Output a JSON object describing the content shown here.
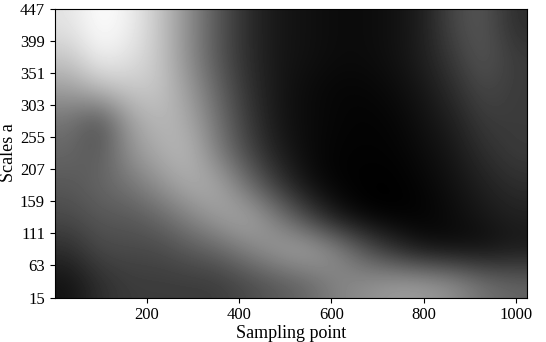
{
  "chart_data": {
    "type": "heatmap",
    "x_label": "Sampling point",
    "y_label": "Scales a",
    "xlim": [
      0,
      1024
    ],
    "ylim": [
      15,
      447
    ],
    "xticks": [
      200,
      400,
      600,
      800,
      1000
    ],
    "yticks": [
      15,
      63,
      111,
      159,
      207,
      255,
      303,
      351,
      399,
      447
    ],
    "color": "gray",
    "x_edges": [
      0,
      64,
      128,
      192,
      256,
      320,
      384,
      448,
      512,
      576,
      640,
      704,
      768,
      832,
      896,
      960,
      1024
    ],
    "y_edges": [
      15,
      63,
      111,
      159,
      207,
      255,
      303,
      351,
      399,
      447
    ],
    "cells": [
      [
        0.1,
        0.2,
        0.25,
        0.25,
        0.25,
        0.25,
        0.3,
        0.35,
        0.4,
        0.5,
        0.55,
        0.6,
        0.6,
        0.55,
        0.45,
        0.4
      ],
      [
        0.2,
        0.3,
        0.3,
        0.3,
        0.35,
        0.4,
        0.5,
        0.6,
        0.65,
        0.55,
        0.35,
        0.2,
        0.1,
        0.08,
        0.08,
        0.12
      ],
      [
        0.3,
        0.35,
        0.35,
        0.4,
        0.5,
        0.6,
        0.65,
        0.5,
        0.3,
        0.12,
        0.05,
        0.04,
        0.05,
        0.08,
        0.12,
        0.15
      ],
      [
        0.35,
        0.4,
        0.45,
        0.55,
        0.65,
        0.65,
        0.45,
        0.25,
        0.1,
        0.05,
        0.04,
        0.04,
        0.06,
        0.1,
        0.15,
        0.2
      ],
      [
        0.4,
        0.35,
        0.55,
        0.65,
        0.7,
        0.5,
        0.3,
        0.15,
        0.08,
        0.05,
        0.05,
        0.05,
        0.08,
        0.12,
        0.2,
        0.25
      ],
      [
        0.45,
        0.3,
        0.6,
        0.7,
        0.65,
        0.45,
        0.25,
        0.12,
        0.08,
        0.06,
        0.05,
        0.06,
        0.1,
        0.15,
        0.25,
        0.25
      ],
      [
        0.6,
        0.7,
        0.75,
        0.75,
        0.6,
        0.4,
        0.22,
        0.12,
        0.08,
        0.06,
        0.06,
        0.08,
        0.12,
        0.2,
        0.3,
        0.25
      ],
      [
        0.75,
        0.9,
        0.85,
        0.75,
        0.55,
        0.35,
        0.2,
        0.12,
        0.1,
        0.08,
        0.08,
        0.1,
        0.15,
        0.25,
        0.35,
        0.25
      ],
      [
        0.85,
        0.95,
        0.9,
        0.75,
        0.55,
        0.35,
        0.2,
        0.12,
        0.1,
        0.08,
        0.08,
        0.1,
        0.15,
        0.3,
        0.35,
        0.2
      ]
    ]
  }
}
